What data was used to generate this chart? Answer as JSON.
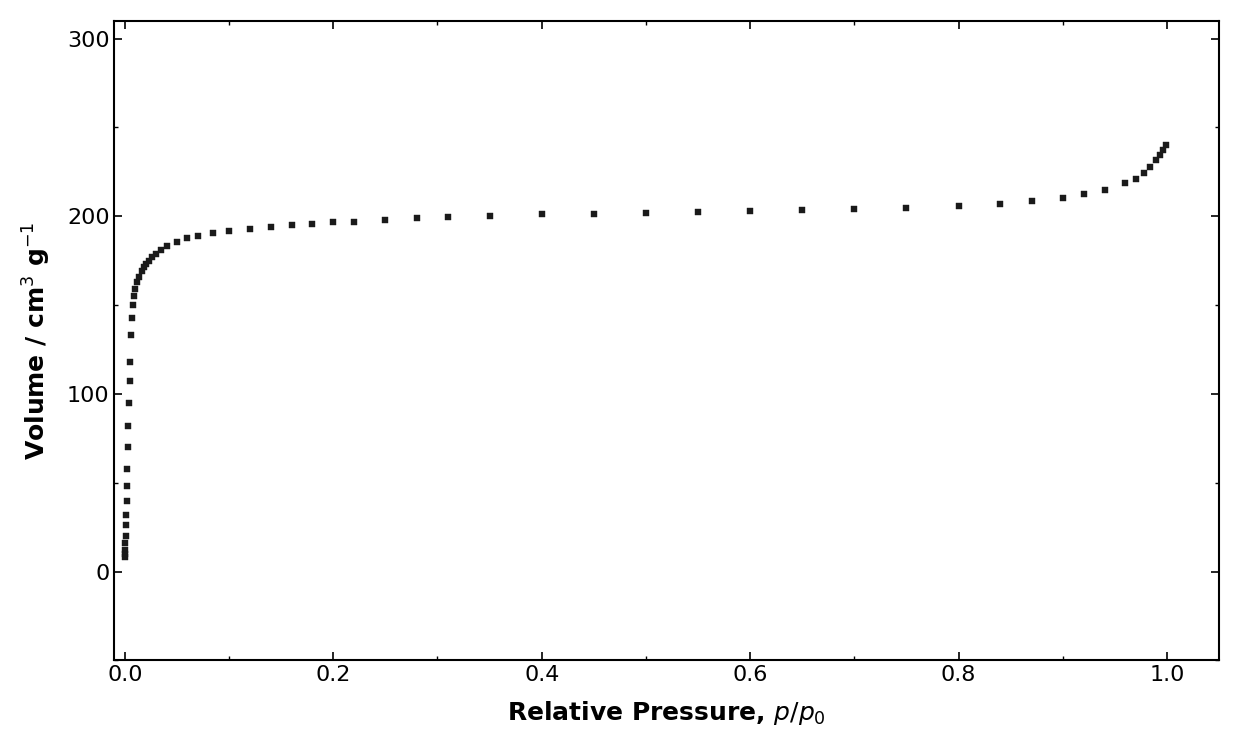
{
  "title": "",
  "xlabel": "Relative Pressure, $p/p_0$",
  "ylabel": "Volume / cm$^3$ g$^{-1}$",
  "xlim": [
    -0.01,
    1.05
  ],
  "ylim": [
    -50,
    310
  ],
  "xticks": [
    0.0,
    0.2,
    0.4,
    0.6,
    0.8,
    1.0
  ],
  "yticks": [
    0,
    100,
    200,
    300
  ],
  "marker": "s",
  "markersize": 5,
  "color": "#1a1a1a",
  "background_color": "#ffffff",
  "x": [
    0.0001,
    0.0002,
    0.0003,
    0.0005,
    0.0007,
    0.001,
    0.0013,
    0.0017,
    0.002,
    0.0025,
    0.003,
    0.0035,
    0.004,
    0.0045,
    0.005,
    0.006,
    0.007,
    0.008,
    0.009,
    0.01,
    0.012,
    0.014,
    0.016,
    0.018,
    0.02,
    0.023,
    0.026,
    0.03,
    0.035,
    0.04,
    0.05,
    0.06,
    0.07,
    0.085,
    0.1,
    0.12,
    0.14,
    0.16,
    0.18,
    0.2,
    0.22,
    0.25,
    0.28,
    0.31,
    0.35,
    0.4,
    0.45,
    0.5,
    0.55,
    0.6,
    0.65,
    0.7,
    0.75,
    0.8,
    0.84,
    0.87,
    0.9,
    0.92,
    0.94,
    0.96,
    0.97,
    0.978,
    0.984,
    0.989,
    0.993,
    0.996,
    0.999
  ],
  "y": [
    8.0,
    10.0,
    12.0,
    16.0,
    20.0,
    26.0,
    32.0,
    40.0,
    48.0,
    58.0,
    70.0,
    82.0,
    95.0,
    107.0,
    118.0,
    133.0,
    143.0,
    150.0,
    155.0,
    159.0,
    163.0,
    166.0,
    169.0,
    171.5,
    173.0,
    175.0,
    177.0,
    179.0,
    181.0,
    183.0,
    185.5,
    187.5,
    189.0,
    190.5,
    191.5,
    193.0,
    194.0,
    195.0,
    195.5,
    196.5,
    197.0,
    198.0,
    199.0,
    199.5,
    200.0,
    201.0,
    201.5,
    202.0,
    202.5,
    203.0,
    203.5,
    204.0,
    204.5,
    205.5,
    207.0,
    208.5,
    210.5,
    212.5,
    215.0,
    218.5,
    221.0,
    224.5,
    228.0,
    231.5,
    234.5,
    237.5,
    240.0
  ]
}
